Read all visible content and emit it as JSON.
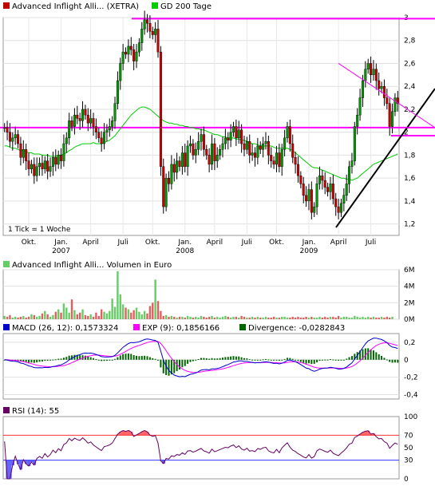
{
  "chart_data": [
    {
      "type": "candlestick",
      "panel": "price",
      "legend": [
        {
          "name": "Advanced Inflight Alli... (XETRA)",
          "color": "#c00000"
        },
        {
          "name": "GD 200 Tage",
          "color": "#00cc00"
        }
      ],
      "tick_note": "1 Tick = 1 Woche",
      "ylim": [
        1.1,
        3.0
      ],
      "yticks": [
        "3",
        "2,8",
        "2,6",
        "2,4",
        "2,2",
        "2",
        "1,8",
        "1,6",
        "1,4",
        "1,2"
      ],
      "ytick_values": [
        3.0,
        2.8,
        2.6,
        2.4,
        2.2,
        2.0,
        1.8,
        1.6,
        1.4,
        1.2
      ],
      "xticks": [
        "Okt.",
        "Jan.",
        "April",
        "Juli",
        "Okt.",
        "Jan.",
        "April",
        "Juli",
        "Okt.",
        "Jan.",
        "April",
        "Juli"
      ],
      "xyears": [
        "2007",
        "2008",
        "2009"
      ],
      "close": [
        2.04,
        2.0,
        1.92,
        1.95,
        1.98,
        1.9,
        1.78,
        1.85,
        1.75,
        1.68,
        1.72,
        1.62,
        1.7,
        1.73,
        1.68,
        1.75,
        1.66,
        1.7,
        1.78,
        1.72,
        1.8,
        1.75,
        1.9,
        1.95,
        2.1,
        2.05,
        2.15,
        2.12,
        2.1,
        2.2,
        2.15,
        2.08,
        2.12,
        2.05,
        2.0,
        1.95,
        1.9,
        2.0,
        2.02,
        2.05,
        2.1,
        2.25,
        2.45,
        2.6,
        2.7,
        2.68,
        2.75,
        2.72,
        2.62,
        2.7,
        2.78,
        2.9,
        2.98,
        2.95,
        2.88,
        2.85,
        2.9,
        2.7,
        1.7,
        1.35,
        1.6,
        1.55,
        1.72,
        1.65,
        1.75,
        1.7,
        1.82,
        1.7,
        1.88,
        1.9,
        1.8,
        1.85,
        1.92,
        1.98,
        1.85,
        1.8,
        1.72,
        1.9,
        1.75,
        1.8,
        1.85,
        1.9,
        1.95,
        1.93,
        2.0,
        2.05,
        1.95,
        2.02,
        1.9,
        1.85,
        1.92,
        1.8,
        1.82,
        1.78,
        1.88,
        1.85,
        1.9,
        1.92,
        1.8,
        1.75,
        1.72,
        1.82,
        1.7,
        1.85,
        1.95,
        2.05,
        1.9,
        1.78,
        1.72,
        1.62,
        1.55,
        1.45,
        1.4,
        1.5,
        1.3,
        1.35,
        1.55,
        1.62,
        1.58,
        1.52,
        1.48,
        1.55,
        1.42,
        1.35,
        1.3,
        1.38,
        1.45,
        1.55,
        1.7,
        1.75,
        2.05,
        2.15,
        2.3,
        2.45,
        2.55,
        2.6,
        2.5,
        2.55,
        2.45,
        2.38,
        2.4,
        2.3,
        2.25,
        2.05,
        2.18,
        2.3,
        2.25
      ],
      "ma200": [
        1.88,
        1.88,
        1.87,
        1.86,
        1.86,
        1.85,
        1.84,
        1.84,
        1.83,
        1.82,
        1.82,
        1.81,
        1.81,
        1.81,
        1.8,
        1.8,
        1.8,
        1.79,
        1.79,
        1.79,
        1.8,
        1.8,
        1.81,
        1.82,
        1.84,
        1.85,
        1.87,
        1.88,
        1.89,
        1.9,
        1.9,
        1.9,
        1.9,
        1.91,
        1.9,
        1.9,
        1.9,
        1.91,
        1.92,
        1.93,
        1.95,
        1.97,
        2.0,
        2.03,
        2.06,
        2.09,
        2.12,
        2.15,
        2.17,
        2.19,
        2.21,
        2.22,
        2.22,
        2.21,
        2.2,
        2.18,
        2.16,
        2.14,
        2.12,
        2.1,
        2.09,
        2.08,
        2.08,
        2.07,
        2.07,
        2.06,
        2.06,
        2.05,
        2.05,
        2.04,
        2.04,
        2.03,
        2.03,
        2.02,
        2.02,
        2.01,
        2.0,
        1.99,
        1.98,
        1.98,
        1.97,
        1.96,
        1.96,
        1.95,
        1.95,
        1.95,
        1.94,
        1.94,
        1.93,
        1.93,
        1.92,
        1.91,
        1.9,
        1.9,
        1.89,
        1.88,
        1.88,
        1.88,
        1.88,
        1.88,
        1.87,
        1.86,
        1.86,
        1.86,
        1.86,
        1.86,
        1.85,
        1.84,
        1.82,
        1.8,
        1.78,
        1.76,
        1.74,
        1.72,
        1.7,
        1.69,
        1.69,
        1.68,
        1.67,
        1.66,
        1.65,
        1.64,
        1.63,
        1.62,
        1.61,
        1.6,
        1.6,
        1.59,
        1.59,
        1.58,
        1.59,
        1.6,
        1.62,
        1.64,
        1.66,
        1.68,
        1.7,
        1.72,
        1.73,
        1.74,
        1.75,
        1.76,
        1.77,
        1.78,
        1.79,
        1.8,
        1.81
      ],
      "annotations": [
        {
          "type": "hline",
          "value": 2.99,
          "color": "#ff00ff"
        },
        {
          "type": "hline",
          "value": 2.04,
          "color": "#ff00ff"
        },
        {
          "type": "hline",
          "value": 1.97,
          "color": "#ff00ff"
        },
        {
          "type": "trendline",
          "color": "#000000"
        },
        {
          "type": "triangle",
          "color": "#ff00ff"
        }
      ]
    },
    {
      "type": "bar",
      "panel": "volume",
      "legend": [
        {
          "name": "Advanced Inflight Alli... Volumen in Euro",
          "color": "#66cc66"
        }
      ],
      "yticks": [
        "6M",
        "4M",
        "2M",
        "0M"
      ],
      "ytick_values": [
        6,
        4,
        2,
        0
      ],
      "ylim": [
        0,
        6
      ],
      "values": [
        0.4,
        0.3,
        0.5,
        0.2,
        0.3,
        0.2,
        0.3,
        0.4,
        0.2,
        0.3,
        0.6,
        0.5,
        0.3,
        0.4,
        0.7,
        1.0,
        0.6,
        0.3,
        0.5,
        0.9,
        1.2,
        0.8,
        1.9,
        1.4,
        0.8,
        2.4,
        1.1,
        0.6,
        0.8,
        1.2,
        0.5,
        0.4,
        0.6,
        0.3,
        0.8,
        0.4,
        1.2,
        0.9,
        0.7,
        1.0,
        2.5,
        1.5,
        5.8,
        3.0,
        1.8,
        1.4,
        1.2,
        0.8,
        1.1,
        1.4,
        0.9,
        0.6,
        1.0,
        0.7,
        1.6,
        2.0,
        4.8,
        2.2,
        1.0,
        0.4,
        0.5,
        0.3,
        0.4,
        0.3,
        0.2,
        0.3,
        0.3,
        0.2,
        0.4,
        0.3,
        0.2,
        0.3,
        0.2,
        0.4,
        0.3,
        0.2,
        0.3,
        0.4,
        0.2,
        0.3,
        0.2,
        0.3,
        0.4,
        0.3,
        0.2,
        0.3,
        0.3,
        0.2,
        0.4,
        0.3,
        0.2,
        0.2,
        0.3,
        0.2,
        0.3,
        0.2,
        0.2,
        0.3,
        0.2,
        0.2,
        0.3,
        0.2,
        0.2,
        0.3,
        0.3,
        0.2,
        0.2,
        0.3,
        0.2,
        0.3,
        0.2,
        0.2,
        0.3,
        0.2,
        0.3,
        0.2,
        0.2,
        0.3,
        0.2,
        0.3,
        0.2,
        0.3,
        0.3,
        0.2,
        0.4,
        0.2,
        0.3,
        0.3,
        0.2,
        0.2,
        0.4,
        0.3,
        0.2,
        0.3,
        0.2,
        0.3,
        0.2,
        0.3,
        0.2,
        0.2,
        0.3,
        0.2,
        0.3,
        0.2,
        0.3
      ]
    },
    {
      "type": "line",
      "panel": "macd",
      "legend": [
        {
          "name": "MACD (26, 12): 0,1573324",
          "color": "#0000cc"
        },
        {
          "name": "EXP (9): 0,1856166",
          "color": "#ff00ff"
        },
        {
          "name": "Divergence: -0,0282843",
          "color": "#006600"
        }
      ],
      "yticks": [
        "0,2",
        "0",
        "-0,2",
        "-0,4"
      ],
      "ytick_values": [
        0.2,
        0.0,
        -0.2,
        -0.4
      ],
      "ylim": [
        -0.45,
        0.3
      ]
    },
    {
      "type": "line",
      "panel": "rsi",
      "legend": [
        {
          "name": "RSI (14): 55",
          "color": "#660066"
        }
      ],
      "yticks": [
        "100",
        "70",
        "50",
        "30",
        "0"
      ],
      "ytick_values": [
        100,
        70,
        50,
        30,
        0
      ],
      "ylim": [
        0,
        100
      ],
      "reference_lines": [
        {
          "value": 70,
          "color": "#ff3333"
        },
        {
          "value": 30,
          "color": "#3333ff"
        }
      ]
    }
  ]
}
